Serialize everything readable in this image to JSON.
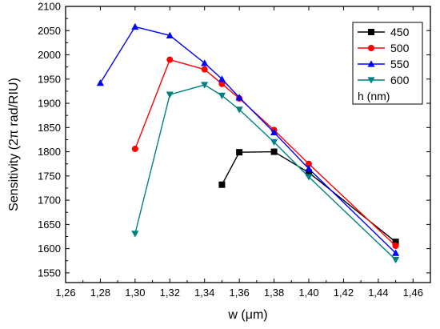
{
  "chart_data": {
    "type": "line",
    "xlabel": "w (μm)",
    "ylabel": "Sensitivity (2π rad/RIU)",
    "xlim": [
      1.26,
      1.47
    ],
    "ylim": [
      1530,
      2100
    ],
    "x_ticks": [
      "1,26",
      "1,28",
      "1,30",
      "1,32",
      "1,34",
      "1,36",
      "1,38",
      "1,40",
      "1,42",
      "1,44",
      "1,46"
    ],
    "x_tick_values": [
      1.26,
      1.28,
      1.3,
      1.32,
      1.34,
      1.36,
      1.38,
      1.4,
      1.42,
      1.44,
      1.46
    ],
    "y_ticks": [
      1550,
      1600,
      1650,
      1700,
      1750,
      1800,
      1850,
      1900,
      1950,
      2000,
      2050,
      2100
    ],
    "legend_title": "h (nm)",
    "legend_position": "top-right",
    "grid": false,
    "series": [
      {
        "name": "450",
        "color": "#000000",
        "marker": "square",
        "points": [
          [
            1.35,
            1732
          ],
          [
            1.36,
            1799
          ],
          [
            1.38,
            1800
          ],
          [
            1.4,
            1757
          ],
          [
            1.45,
            1614
          ]
        ]
      },
      {
        "name": "500",
        "color": "#ff0000",
        "marker": "circle",
        "points": [
          [
            1.3,
            1806
          ],
          [
            1.32,
            1990
          ],
          [
            1.34,
            1970
          ],
          [
            1.35,
            1940
          ],
          [
            1.36,
            1910
          ],
          [
            1.38,
            1845
          ],
          [
            1.4,
            1775
          ],
          [
            1.45,
            1606
          ]
        ]
      },
      {
        "name": "550",
        "color": "#0000ff",
        "marker": "triangle-up",
        "points": [
          [
            1.28,
            1942
          ],
          [
            1.3,
            2058
          ],
          [
            1.32,
            2040
          ],
          [
            1.34,
            1983
          ],
          [
            1.35,
            1950
          ],
          [
            1.36,
            1912
          ],
          [
            1.38,
            1840
          ],
          [
            1.4,
            1765
          ],
          [
            1.45,
            1591
          ]
        ]
      },
      {
        "name": "600",
        "color": "#008080",
        "marker": "triangle-down",
        "points": [
          [
            1.3,
            1631
          ],
          [
            1.32,
            1918
          ],
          [
            1.34,
            1938
          ],
          [
            1.35,
            1916
          ],
          [
            1.36,
            1887
          ],
          [
            1.38,
            1820
          ],
          [
            1.4,
            1748
          ],
          [
            1.45,
            1577
          ]
        ]
      }
    ]
  }
}
